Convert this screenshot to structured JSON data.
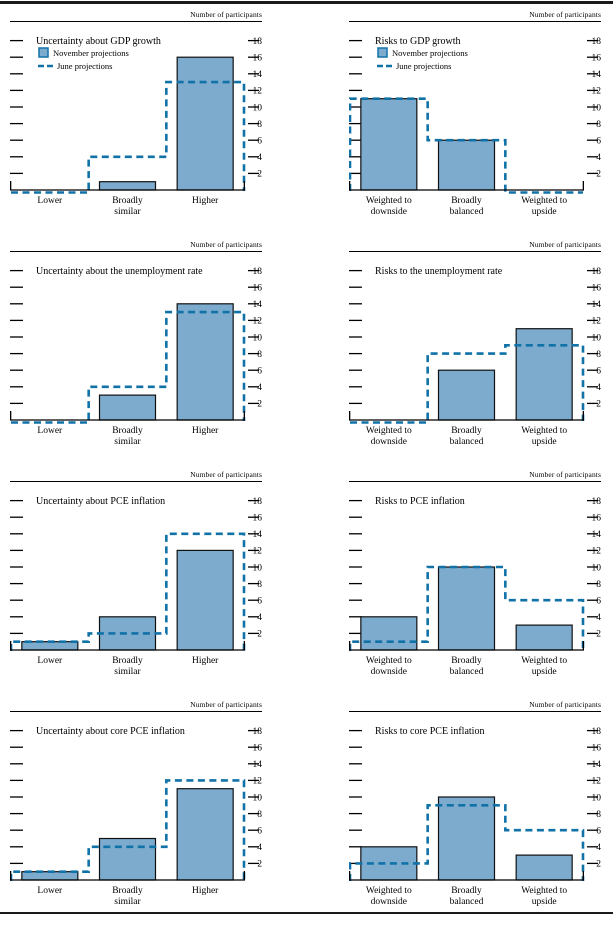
{
  "page": {
    "header_label": "Number of participants"
  },
  "legend": {
    "november_label": "November projections",
    "june_label": "June projections"
  },
  "colors": {
    "bar_fill": "#7CABCE",
    "bar_border": "#111111",
    "june_line": "#1172A8",
    "axis": "#000000"
  },
  "chart_data": [
    {
      "type": "bar",
      "title": "Uncertainty about GDP growth",
      "show_legend": true,
      "ylabel": "Number of participants",
      "ylim": [
        0,
        19.5
      ],
      "yticks": [
        2,
        4,
        6,
        8,
        10,
        12,
        14,
        16,
        18
      ],
      "categories": [
        "Lower",
        "Broadly similar",
        "Higher"
      ],
      "series": [
        {
          "name": "November projections",
          "style": "bar",
          "values": [
            0,
            1,
            16
          ]
        },
        {
          "name": "June projections",
          "style": "dashed-step",
          "values": [
            0,
            4,
            13
          ]
        }
      ]
    },
    {
      "type": "bar",
      "title": "Risks to GDP growth",
      "show_legend": true,
      "ylabel": "Number of participants",
      "ylim": [
        0,
        19.5
      ],
      "yticks": [
        2,
        4,
        6,
        8,
        10,
        12,
        14,
        16,
        18
      ],
      "categories": [
        "Weighted to downside",
        "Broadly balanced",
        "Weighted to upside"
      ],
      "series": [
        {
          "name": "November projections",
          "style": "bar",
          "values": [
            11,
            6,
            0
          ]
        },
        {
          "name": "June projections",
          "style": "dashed-step",
          "values": [
            11,
            6,
            0
          ]
        }
      ]
    },
    {
      "type": "bar",
      "title": "Uncertainty about the unemployment rate",
      "show_legend": false,
      "ylabel": "Number of participants",
      "ylim": [
        0,
        19.5
      ],
      "yticks": [
        2,
        4,
        6,
        8,
        10,
        12,
        14,
        16,
        18
      ],
      "categories": [
        "Lower",
        "Broadly similar",
        "Higher"
      ],
      "series": [
        {
          "name": "November projections",
          "style": "bar",
          "values": [
            0,
            3,
            14
          ]
        },
        {
          "name": "June projections",
          "style": "dashed-step",
          "values": [
            0,
            4,
            13
          ]
        }
      ]
    },
    {
      "type": "bar",
      "title": "Risks to the unemployment rate",
      "show_legend": false,
      "ylabel": "Number of participants",
      "ylim": [
        0,
        19.5
      ],
      "yticks": [
        2,
        4,
        6,
        8,
        10,
        12,
        14,
        16,
        18
      ],
      "categories": [
        "Weighted to downside",
        "Broadly balanced",
        "Weighted to upside"
      ],
      "series": [
        {
          "name": "November projections",
          "style": "bar",
          "values": [
            0,
            6,
            11
          ]
        },
        {
          "name": "June projections",
          "style": "dashed-step",
          "values": [
            0,
            8,
            9
          ]
        }
      ]
    },
    {
      "type": "bar",
      "title": "Uncertainty about PCE inflation",
      "show_legend": false,
      "ylabel": "Number of participants",
      "ylim": [
        0,
        19.5
      ],
      "yticks": [
        2,
        4,
        6,
        8,
        10,
        12,
        14,
        16,
        18
      ],
      "categories": [
        "Lower",
        "Broadly similar",
        "Higher"
      ],
      "series": [
        {
          "name": "November projections",
          "style": "bar",
          "values": [
            1,
            4,
            12
          ]
        },
        {
          "name": "June projections",
          "style": "dashed-step",
          "values": [
            1,
            2,
            14
          ]
        }
      ]
    },
    {
      "type": "bar",
      "title": "Risks to PCE inflation",
      "show_legend": false,
      "ylabel": "Number of participants",
      "ylim": [
        0,
        19.5
      ],
      "yticks": [
        2,
        4,
        6,
        8,
        10,
        12,
        14,
        16,
        18
      ],
      "categories": [
        "Weighted to downside",
        "Broadly balanced",
        "Weighted to upside"
      ],
      "series": [
        {
          "name": "November projections",
          "style": "bar",
          "values": [
            4,
            10,
            3
          ]
        },
        {
          "name": "June projections",
          "style": "dashed-step",
          "values": [
            1,
            10,
            6
          ]
        }
      ]
    },
    {
      "type": "bar",
      "title": "Uncertainty about core PCE inflation",
      "show_legend": false,
      "ylabel": "Number of participants",
      "ylim": [
        0,
        19.5
      ],
      "yticks": [
        2,
        4,
        6,
        8,
        10,
        12,
        14,
        16,
        18
      ],
      "categories": [
        "Lower",
        "Broadly similar",
        "Higher"
      ],
      "series": [
        {
          "name": "November projections",
          "style": "bar",
          "values": [
            1,
            5,
            11
          ]
        },
        {
          "name": "June projections",
          "style": "dashed-step",
          "values": [
            1,
            4,
            12
          ]
        }
      ]
    },
    {
      "type": "bar",
      "title": "Risks to core PCE inflation",
      "show_legend": false,
      "ylabel": "Number of participants",
      "ylim": [
        0,
        19.5
      ],
      "yticks": [
        2,
        4,
        6,
        8,
        10,
        12,
        14,
        16,
        18
      ],
      "categories": [
        "Weighted to downside",
        "Broadly balanced",
        "Weighted to upside"
      ],
      "series": [
        {
          "name": "November projections",
          "style": "bar",
          "values": [
            4,
            10,
            3
          ]
        },
        {
          "name": "June projections",
          "style": "dashed-step",
          "values": [
            2,
            9,
            6
          ]
        }
      ]
    }
  ]
}
